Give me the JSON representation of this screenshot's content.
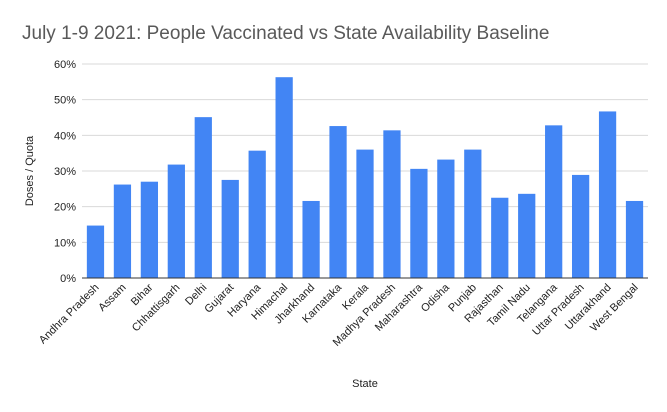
{
  "chart_data": {
    "type": "bar",
    "title": "July 1-9 2021: People Vaccinated vs State Availability Baseline",
    "xlabel": "State",
    "ylabel": "Doses / Quota",
    "categories": [
      "Andhra Pradesh",
      "Assam",
      "Bihar",
      "Chhattisgarh",
      "Delhi",
      "Gujarat",
      "Haryana",
      "Himachal",
      "Jharkhand",
      "Karnataka",
      "Kerala",
      "Madhya Pradesh",
      "Maharashtra",
      "Odisha",
      "Punjab",
      "Rajasthan",
      "Tamil Nadu",
      "Telangana",
      "Uttar Pradesh",
      "Uttarakhand",
      "West Bengal"
    ],
    "values": [
      14.7,
      26.2,
      27.0,
      31.8,
      45.1,
      27.5,
      35.7,
      56.3,
      21.6,
      42.6,
      36.0,
      41.4,
      30.6,
      33.2,
      36.0,
      22.5,
      23.6,
      42.8,
      28.9,
      46.7,
      21.6
    ],
    "ylim": [
      0,
      60
    ],
    "yticks": [
      "0%",
      "10%",
      "20%",
      "30%",
      "40%",
      "50%",
      "60%"
    ],
    "grid": true,
    "legend": "none",
    "bar_color": "#4285f4"
  }
}
